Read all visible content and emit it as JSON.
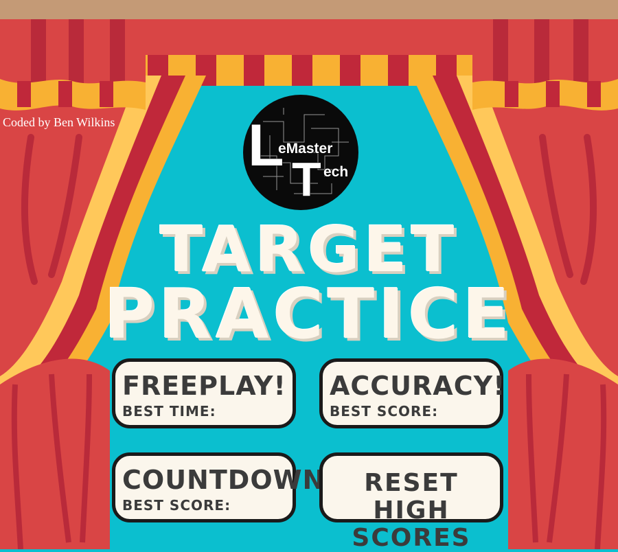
{
  "credit": "Coded by Ben Wilkins",
  "logo": {
    "letter_L": "L",
    "word_1": "eMaster",
    "letter_T": "T",
    "word_2": "ech"
  },
  "title": {
    "line1": "TARGET",
    "line2": "PRACTICE"
  },
  "buttons": {
    "freeplay": {
      "label": "FREEPLAY!",
      "sub": "BEST TIME:"
    },
    "accuracy": {
      "label": "ACCURACY!",
      "sub": "BEST SCORE:"
    },
    "countdown": {
      "label": "COUNTDOWN!",
      "sub": "BEST SCORE:"
    },
    "reset": {
      "label": "RESET HIGH SCORES"
    }
  },
  "colors": {
    "background": "#0bbfcf",
    "curtain_red": "#d94545",
    "curtain_dark": "#b92a3a",
    "curtain_yellow": "#f8b133",
    "curtain_light": "#ffc85a",
    "rod": "#c49a76",
    "button_fill": "#fbf6ec",
    "button_border": "#1a1a1a",
    "button_text": "#3b3b3b"
  }
}
